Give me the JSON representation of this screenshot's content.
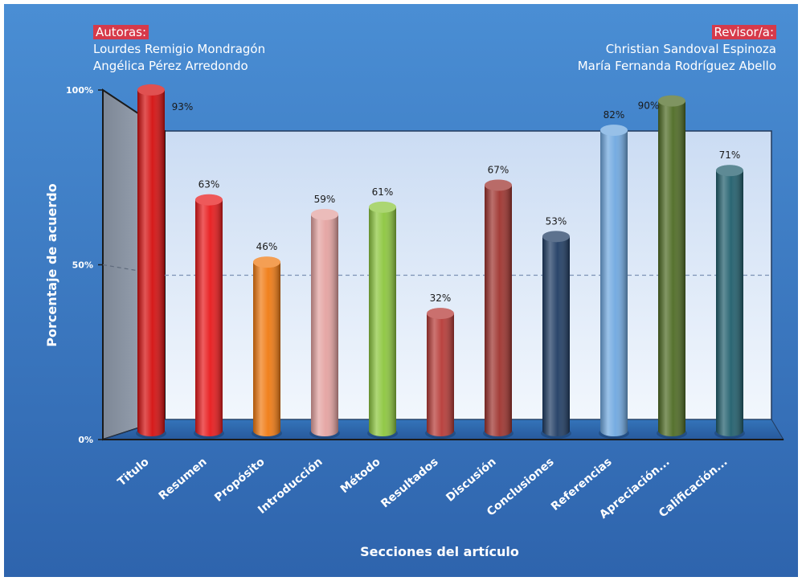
{
  "authors": {
    "heading": "Autoras:",
    "names": [
      "Lourdes Remigio Mondragón",
      "Angélica Pérez Arredondo"
    ]
  },
  "reviewers": {
    "heading": "Revisor/a:",
    "names": [
      "Christian Sandoval Espinoza",
      "María Fernanda Rodríguez Abello"
    ]
  },
  "colors": {
    "background_top": "#4a8ed4",
    "background_bottom": "#2e64ad",
    "wall": "#d9e6f6",
    "floor": "#2f6bb0",
    "left_wall": "#8c97a8",
    "reference_line": "#7d93b5"
  },
  "chart_data": {
    "type": "bar",
    "xlabel": "Secciones del artículo",
    "ylabel": "Porcentaje de acuerdo",
    "ylim": [
      0,
      100
    ],
    "y_ticks": [
      "0%",
      "50%",
      "100%"
    ],
    "grid": false,
    "reference_line": 50,
    "categories": [
      "Titulo",
      "Resumen",
      "Propósito",
      "Introducción",
      "Método",
      "Resultados",
      "Discusión",
      "Conclusiones",
      "Referencias",
      "Apreciación...",
      "Calificación..."
    ],
    "values": [
      93,
      63,
      46,
      59,
      61,
      32,
      67,
      53,
      82,
      90,
      71
    ],
    "value_labels": [
      "93%",
      "63%",
      "46%",
      "59%",
      "61%",
      "32%",
      "67%",
      "53%",
      "82%",
      "90%",
      "71%"
    ],
    "bar_colors": [
      "#d40f0f",
      "#e8191b",
      "#f07a12",
      "#e4a2a0",
      "#8cc63e",
      "#b63a36",
      "#9e332e",
      "#1f3c63",
      "#6fa8e0",
      "#4e6b24",
      "#205e6c"
    ]
  }
}
